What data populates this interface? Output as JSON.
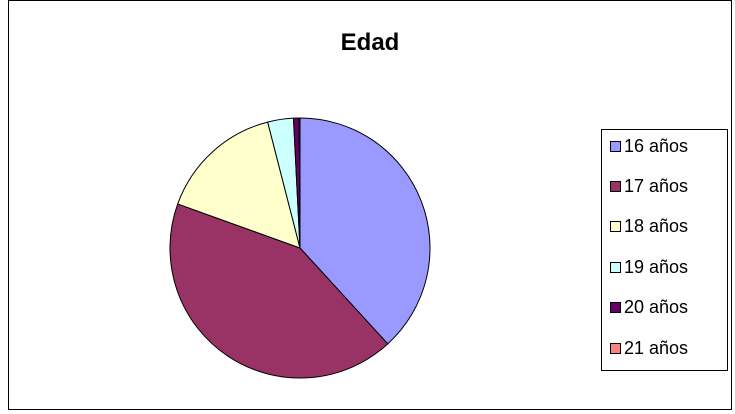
{
  "chart_data": {
    "type": "pie",
    "title": "Edad",
    "categories": [
      "16 años",
      "17 años",
      "18 años",
      "19 años",
      "20 años",
      "21 años"
    ],
    "values": [
      38.2,
      42.3,
      15.5,
      3.2,
      0.7,
      0.1
    ],
    "unit": "percent (estimated)",
    "colors": [
      "#9999ff",
      "#993366",
      "#ffffcc",
      "#ccffff",
      "#660066",
      "#ff8080"
    ],
    "start_angle_deg": 0,
    "direction": "clockwise",
    "legend": "right",
    "grid": false
  }
}
